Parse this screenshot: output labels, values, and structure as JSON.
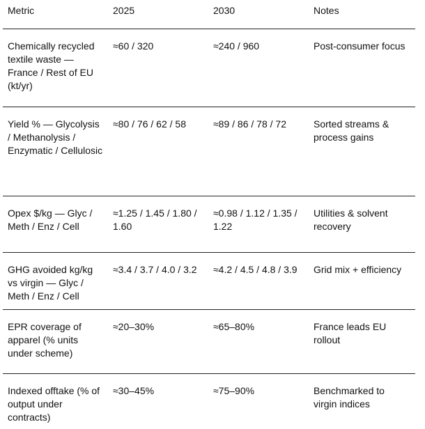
{
  "table": {
    "header": [
      "Metric",
      "2025",
      "2030",
      "Notes"
    ],
    "rows": [
      [
        "Chemically recycled textile waste — France / Rest of EU (kt/yr)",
        "≈60 / 320",
        "≈240 / 960",
        "Post-consumer focus"
      ],
      [
        "Yield % — Glycolysis / Methanolysis / Enzymatic / Cellulosic",
        "≈80 / 76 / 62 / 58",
        "≈89 / 86 / 78 / 72",
        "Sorted streams & process gains"
      ],
      [
        "Opex $/kg — Glyc / Meth / Enz / Cell",
        "≈1.25 / 1.45 / 1.80 / 1.60",
        "≈0.98 / 1.12 / 1.35 / 1.22",
        "Utilities & solvent recovery"
      ],
      [
        "GHG avoided kg/kg vs virgin — Glyc / Meth / Enz / Cell",
        "≈3.4 / 3.7 / 4.0 / 3.2",
        "≈4.2 / 4.5 / 4.8 / 3.9",
        "Grid mix + efficiency"
      ],
      [
        "EPR coverage of apparel (% units under scheme)",
        "≈20–30%",
        "≈65–80%",
        "France leads EU rollout"
      ],
      [
        "Indexed offtake (% of output under contracts)",
        "≈30–45%",
        "≈75–90%",
        "Benchmarked to virgin indices"
      ]
    ]
  }
}
